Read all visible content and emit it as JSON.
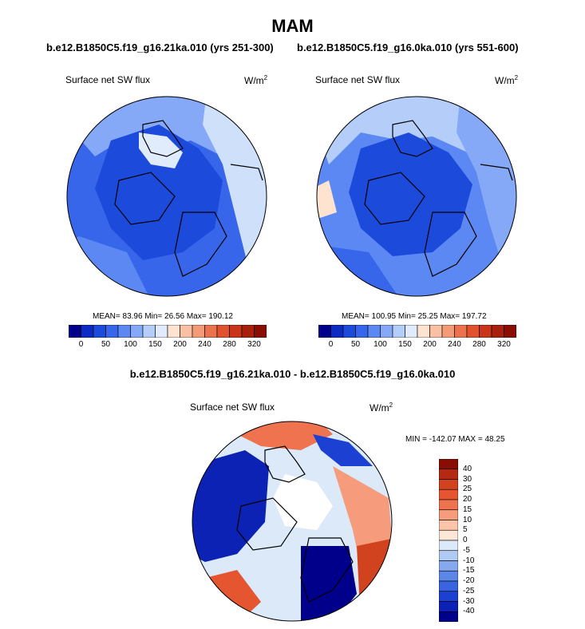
{
  "title": "MAM",
  "panels": [
    {
      "case": "b.e12.B1850C5.f19_g16.21ka.010 (yrs 251-300)",
      "variable": "Surface net SW flux",
      "units": "W/m",
      "units_exp": "2",
      "stats": "MEAN= 83.96  Min= 26.56  Max= 190.12"
    },
    {
      "case": "b.e12.B1850C5.f19_g16.0ka.010 (yrs 551-600)",
      "variable": "Surface net SW flux",
      "units": "W/m",
      "units_exp": "2",
      "stats": "MEAN= 100.95  Min= 25.25  Max= 197.72"
    }
  ],
  "colorbar_top": {
    "labels": [
      "0",
      "50",
      "100",
      "150",
      "200",
      "240",
      "280",
      "320"
    ],
    "colors": [
      "#00008b",
      "#0d2ac2",
      "#1c4bdc",
      "#3766eb",
      "#5b88f2",
      "#85a9f6",
      "#b4cdf9",
      "#e0ecfb",
      "#fde3d0",
      "#f9c0a3",
      "#f39a77",
      "#ec724d",
      "#e2512e",
      "#c93518",
      "#a81f0b",
      "#8a0d02"
    ]
  },
  "diff": {
    "title": "b.e12.B1850C5.f19_g16.21ka.010 - b.e12.B1850C5.f19_g16.0ka.010",
    "variable": "Surface net SW flux",
    "units": "W/m",
    "units_exp": "2",
    "stats": "MIN = -142.07 MAX =  48.25"
  },
  "colorbar_diff": {
    "labels": [
      "40",
      "30",
      "25",
      "20",
      "15",
      "10",
      "5",
      "0",
      "-5",
      "-10",
      "-15",
      "-20",
      "-25",
      "-30",
      "-40"
    ],
    "colors": [
      "#8a0d02",
      "#b22a12",
      "#d1431f",
      "#e5552f",
      "#f07350",
      "#f69b7b",
      "#fbc5a9",
      "#fde6d6",
      "#dce9f8",
      "#b0cbf3",
      "#86a9ee",
      "#5c86e8",
      "#3a63e0",
      "#1c40d2",
      "#0b22b4",
      "#00008b"
    ]
  },
  "colors": {
    "land_outline": "#000000",
    "map_blue_deep": "#1c4bdc",
    "map_blue_mid": "#3766eb",
    "map_blue_light": "#85a9f6",
    "map_blue_pale": "#cfe0fa"
  }
}
